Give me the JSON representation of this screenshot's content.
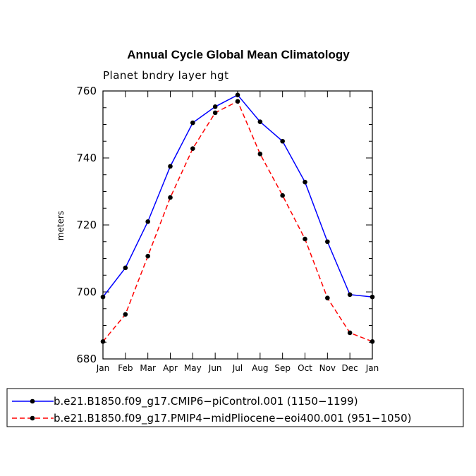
{
  "chart_data": {
    "type": "line",
    "title": "Annual Cycle Global Mean Climatology",
    "subtitle": "Planet bndry layer hgt",
    "xlabel": "",
    "ylabel": "meters",
    "categories": [
      "Jan",
      "Feb",
      "Mar",
      "Apr",
      "May",
      "Jun",
      "Jul",
      "Aug",
      "Sep",
      "Oct",
      "Nov",
      "Dec",
      "Jan"
    ],
    "ylim": [
      680,
      760
    ],
    "yticks": [
      680,
      700,
      720,
      740,
      760
    ],
    "series": [
      {
        "name": "b.e21.B1850.f09_g17.CMIP6−piControl.001 (1150−1199)",
        "color": "#0000ff",
        "dash": "solid",
        "values": [
          698.5,
          707.2,
          721.0,
          737.5,
          750.5,
          755.3,
          758.8,
          750.8,
          745.0,
          732.8,
          715.0,
          699.2,
          698.5
        ]
      },
      {
        "name": "b.e21.B1850.f09_g17.PMIP4−midPliocene−eoi400.001 (951−1050)",
        "color": "#ff0000",
        "dash": "dashed",
        "values": [
          685.2,
          693.3,
          710.7,
          728.2,
          742.8,
          753.5,
          756.9,
          741.2,
          728.8,
          715.8,
          698.2,
          687.8,
          685.2
        ]
      }
    ]
  }
}
